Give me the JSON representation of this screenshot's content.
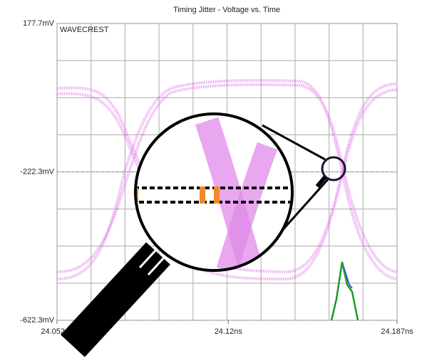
{
  "chart_data": {
    "type": "line",
    "title": "Timing Jitter - Voltage vs. Time",
    "annotations": [
      "WAVECREST"
    ],
    "ylim": [
      -622.3,
      177.7
    ],
    "yticks": [
      {
        "value": -622.3,
        "label": "-622.3mV"
      },
      {
        "value": -222.3,
        "label": "-222.3mV"
      },
      {
        "value": 177.7,
        "label": "177.7mV"
      }
    ],
    "xlim": [
      24.052,
      24.187
    ],
    "xticks": [
      {
        "value": 24.052,
        "label": "24.052ns"
      },
      {
        "value": 24.12,
        "label": "24.12ns"
      },
      {
        "value": 24.187,
        "label": "24.187ns"
      }
    ],
    "grid": true
  }
}
